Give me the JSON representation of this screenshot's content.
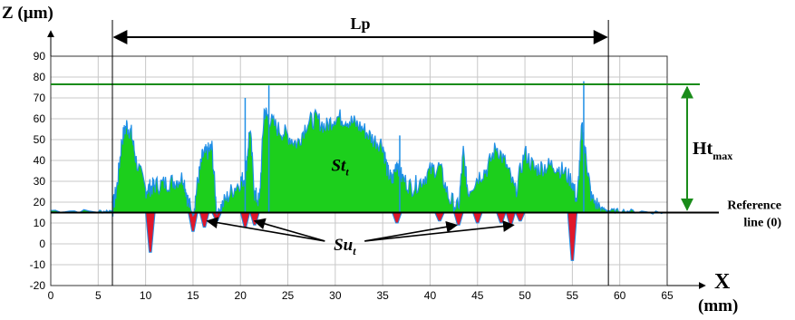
{
  "chart_data": {
    "type": "area",
    "title": "",
    "xlabel": "X",
    "xunit": "(mm)",
    "ylabel": "Z (µm)",
    "xlim": [
      0,
      65
    ],
    "ylim": [
      -20,
      90
    ],
    "x_ticks": [
      0,
      5,
      10,
      15,
      20,
      25,
      30,
      35,
      40,
      45,
      50,
      55,
      60,
      65
    ],
    "y_ticks": [
      -20,
      -10,
      0,
      10,
      20,
      30,
      40,
      50,
      60,
      70,
      80,
      90
    ],
    "grid": true,
    "colors": {
      "profile": "#1f8fe6",
      "above": "#1ccf1c",
      "below": "#e0182b",
      "ht_line": "#1a8c1a"
    },
    "reference_line": {
      "label_line1": "Reference",
      "label_line2": "line (0)",
      "z": 15
    },
    "lp": {
      "label": "Lp",
      "x_start": 6.5,
      "x_end": 58.8
    },
    "ht_max": {
      "label": "Ht",
      "subscript": "max",
      "z": 76.5
    },
    "st_label": {
      "text": "St",
      "subscript": "t"
    },
    "su_label": {
      "text": "Su",
      "subscript": "t"
    },
    "profile": {
      "x": [
        0,
        5,
        6.5,
        7,
        7.5,
        8,
        8.5,
        9,
        10,
        10.5,
        11,
        12,
        13,
        14,
        14.5,
        15,
        15.5,
        16,
        16.5,
        17,
        17.5,
        18,
        19,
        20,
        20.5,
        21,
        21.5,
        22,
        22.5,
        23,
        24,
        25,
        26,
        27,
        28,
        29,
        30,
        31,
        32,
        33,
        34,
        35,
        35.5,
        36,
        36.5,
        37,
        38,
        39,
        40,
        41,
        42,
        43,
        43.5,
        44,
        45,
        46,
        47,
        48,
        49,
        50,
        51,
        52,
        53,
        54,
        55,
        55.5,
        56,
        56.5,
        57,
        58,
        58.8,
        60,
        62,
        65
      ],
      "z": [
        16,
        15.5,
        16,
        28,
        50,
        57,
        53,
        40,
        26,
        27,
        28,
        29,
        30,
        32,
        20,
        14,
        30,
        42,
        44,
        46,
        15,
        18,
        25,
        30,
        32,
        56,
        24,
        20,
        64,
        60,
        55,
        52,
        48,
        58,
        60,
        56,
        61,
        60,
        58,
        55,
        50,
        48,
        35,
        30,
        40,
        32,
        27,
        30,
        35,
        37,
        22,
        17,
        44,
        25,
        32,
        36,
        47,
        38,
        25,
        44,
        36,
        37,
        38,
        35,
        30,
        20,
        56,
        40,
        22,
        17,
        16,
        16,
        15.5,
        15
      ]
    },
    "dips": {
      "x": [
        10.5,
        15,
        16.2,
        17.5,
        20.5,
        21.5,
        36.5,
        41,
        43,
        45,
        47.5,
        48.5,
        49.5,
        55
      ],
      "z": [
        -4,
        6,
        8,
        11,
        8,
        9,
        10,
        11,
        9,
        10,
        10,
        9,
        11,
        -8
      ]
    },
    "spikes": {
      "x": [
        20.5,
        23,
        36.8,
        56.2
      ],
      "z": [
        70,
        76,
        52,
        78
      ]
    },
    "su_arrow_targets": {
      "x": [
        16.5,
        21.5,
        42.8,
        48.8
      ],
      "z": [
        11,
        11,
        9,
        9
      ]
    }
  }
}
